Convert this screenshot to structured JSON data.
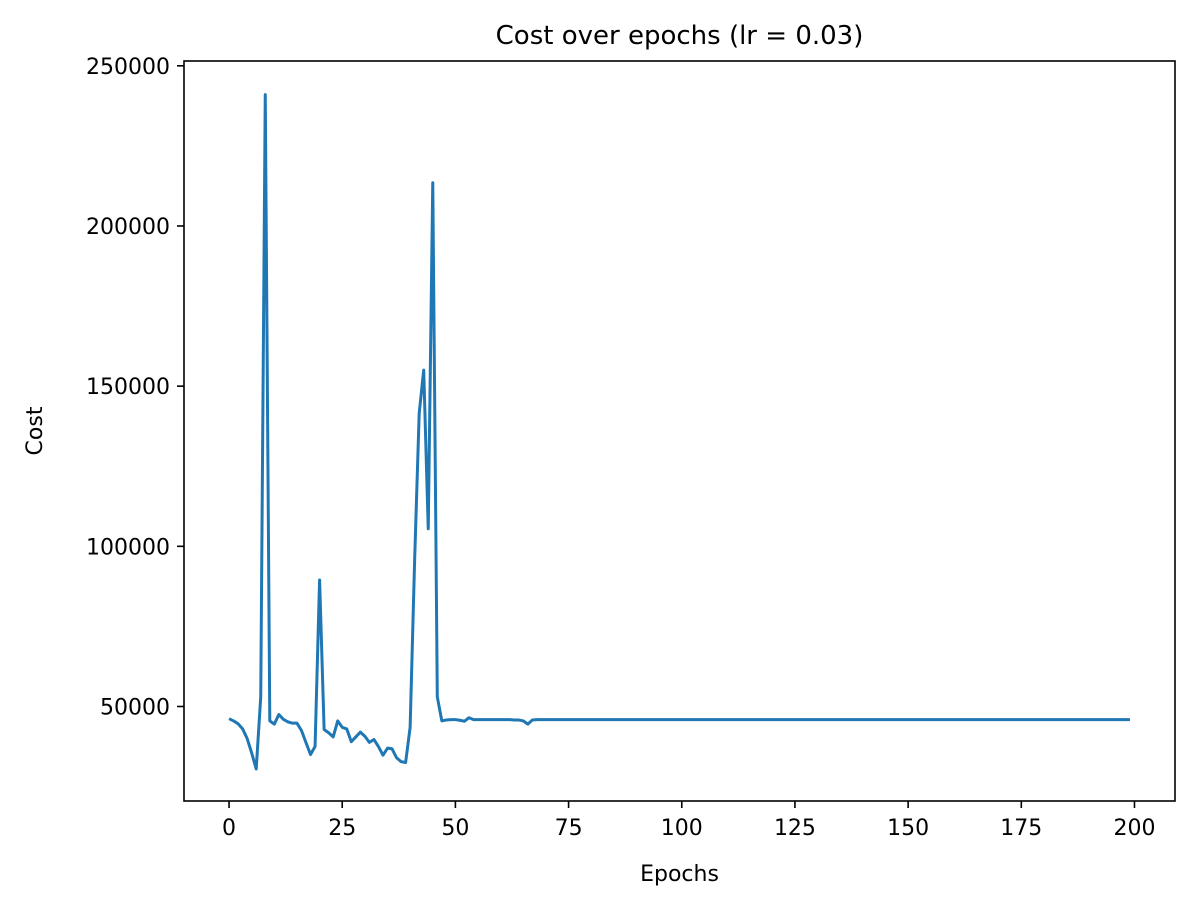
{
  "chart_data": {
    "type": "line",
    "title": "Cost over epochs (lr = 0.03)",
    "xlabel": "Epochs",
    "ylabel": "Cost",
    "xlim": [
      -9.95,
      208.95
    ],
    "ylim": [
      20500,
      251500
    ],
    "xticks": [
      0,
      25,
      50,
      75,
      100,
      125,
      150,
      175,
      200
    ],
    "yticks": [
      50000,
      100000,
      150000,
      200000,
      250000
    ],
    "grid": false,
    "line_color": "#1f77b4",
    "series": [
      {
        "x": [
          0,
          1,
          2,
          3,
          4,
          5,
          6,
          7,
          8,
          9,
          10,
          11,
          12,
          13,
          14,
          15,
          16,
          17,
          18,
          19,
          20,
          21,
          22,
          23,
          24,
          25,
          26,
          27,
          28,
          29,
          30,
          31,
          32,
          33,
          34,
          35,
          36,
          37,
          38,
          39,
          40,
          41,
          42,
          43,
          44,
          45,
          46,
          47,
          48,
          49,
          50,
          51,
          52,
          53,
          54,
          55,
          56,
          57,
          58,
          59,
          60,
          61,
          62,
          63,
          64,
          65,
          66,
          67,
          68,
          69,
          70,
          199
        ],
        "values": [
          46200,
          45500,
          44600,
          43000,
          40000,
          35500,
          30500,
          53000,
          241000,
          45500,
          44500,
          47500,
          46000,
          45200,
          44800,
          44800,
          42500,
          38700,
          35000,
          37500,
          89500,
          42800,
          41800,
          40500,
          45500,
          43500,
          43000,
          39000,
          40500,
          42000,
          40700,
          38800,
          39700,
          37500,
          34800,
          37000,
          36800,
          34000,
          32800,
          32500,
          43500,
          96000,
          141500,
          155000,
          105500,
          213500,
          53000,
          45500,
          45800,
          45900,
          45900,
          45700,
          45400,
          46500,
          45900,
          45900,
          45900,
          45900,
          45900,
          45900,
          45900,
          45900,
          45900,
          45800,
          45800,
          45500,
          44500,
          45800,
          45900,
          45900,
          45900,
          45900
        ]
      }
    ]
  }
}
